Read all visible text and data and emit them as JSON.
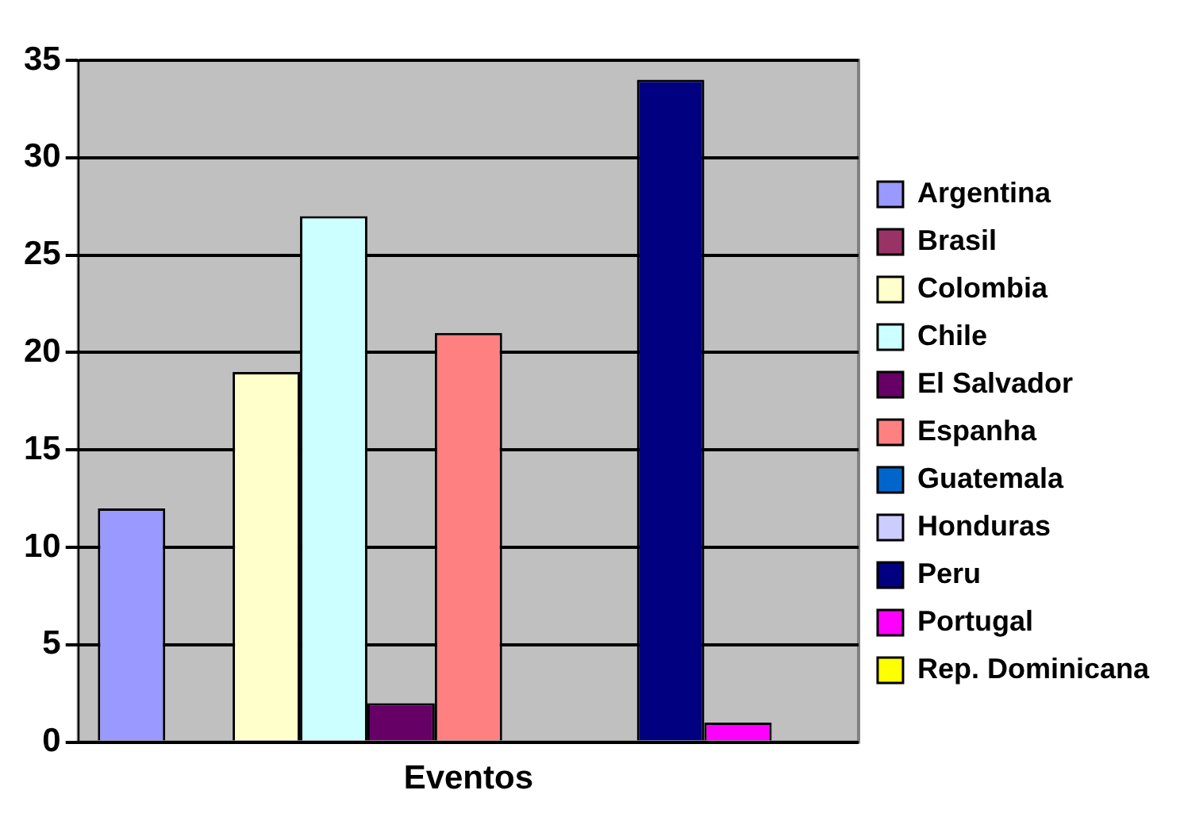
{
  "chart_data": {
    "type": "bar",
    "categories": [
      "Eventos"
    ],
    "series": [
      {
        "name": "Argentina",
        "color": "#9999ff",
        "values": [
          12
        ]
      },
      {
        "name": "Brasil",
        "color": "#993366",
        "values": [
          0
        ]
      },
      {
        "name": "Colombia",
        "color": "#ffffcc",
        "values": [
          19
        ]
      },
      {
        "name": "Chile",
        "color": "#ccffff",
        "values": [
          27
        ]
      },
      {
        "name": "El Salvador",
        "color": "#660066",
        "values": [
          2
        ]
      },
      {
        "name": "Espanha",
        "color": "#ff8080",
        "values": [
          21
        ]
      },
      {
        "name": "Guatemala",
        "color": "#0066cc",
        "values": [
          0
        ]
      },
      {
        "name": "Honduras",
        "color": "#ccccff",
        "values": [
          0
        ]
      },
      {
        "name": "Peru",
        "color": "#000080",
        "values": [
          34
        ]
      },
      {
        "name": "Portugal",
        "color": "#ff00ff",
        "values": [
          1
        ]
      },
      {
        "name": "Rep. Dominicana",
        "color": "#ffff00",
        "values": [
          0
        ]
      }
    ],
    "ylim": [
      0,
      35
    ],
    "yticks": [
      0,
      5,
      10,
      15,
      20,
      25,
      30,
      35
    ],
    "grid": "y",
    "legend": "right"
  }
}
